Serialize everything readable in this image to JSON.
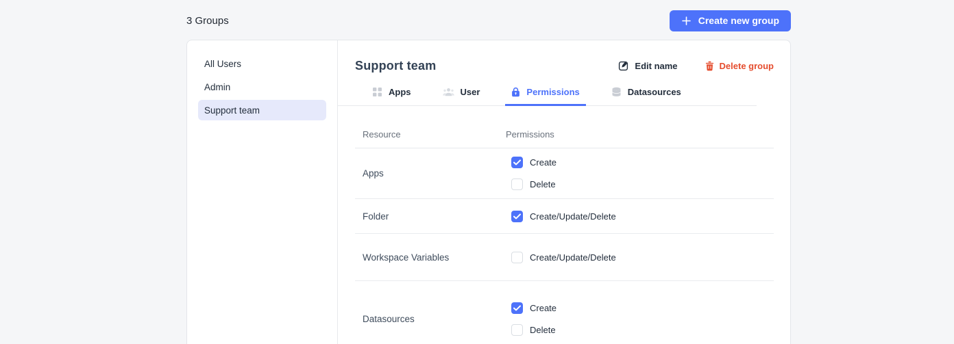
{
  "header": {
    "title": "3 Groups",
    "create_button_label": "Create new group"
  },
  "sidebar": {
    "items": [
      {
        "label": "All Users",
        "active": false
      },
      {
        "label": "Admin",
        "active": false
      },
      {
        "label": "Support team",
        "active": true
      }
    ]
  },
  "panel": {
    "title": "Support team",
    "actions": {
      "edit_label": "Edit name",
      "edit_icon": "edit-pencil-icon",
      "delete_label": "Delete group",
      "delete_icon": "trash-icon"
    },
    "tabs": [
      {
        "label": "Apps",
        "icon": "apps-grid-icon",
        "active": false
      },
      {
        "label": "User",
        "icon": "users-icon",
        "active": false
      },
      {
        "label": "Permissions",
        "icon": "lock-icon",
        "active": true
      },
      {
        "label": "Datasources",
        "icon": "database-icon",
        "active": false
      }
    ],
    "table": {
      "columns": [
        "Resource",
        "Permissions"
      ],
      "rows": [
        {
          "resource": "Apps",
          "permissions": [
            {
              "label": "Create",
              "checked": true
            },
            {
              "label": "Delete",
              "checked": false
            }
          ]
        },
        {
          "resource": "Folder",
          "permissions": [
            {
              "label": "Create/Update/Delete",
              "checked": true
            }
          ]
        },
        {
          "resource": "Workspace Variables",
          "permissions": [
            {
              "label": "Create/Update/Delete",
              "checked": false
            }
          ]
        },
        {
          "resource": "Datasources",
          "permissions": [
            {
              "label": "Create",
              "checked": true
            },
            {
              "label": "Delete",
              "checked": false
            }
          ]
        }
      ]
    }
  },
  "colors": {
    "accent": "#4D72FA",
    "danger": "#E54D2E",
    "selected_item_bg": "#E6E9FB"
  }
}
